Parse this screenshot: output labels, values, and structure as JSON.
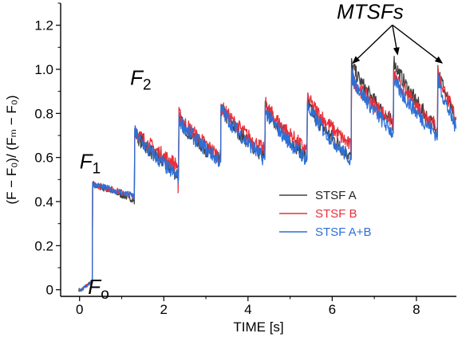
{
  "chart_data": {
    "type": "line",
    "xlabel": "TIME [s]",
    "ylabel": "(F − F₀)/ (Fₘ − F₀)",
    "xlim": [
      -0.45,
      8.95
    ],
    "ylim": [
      -0.03,
      1.3
    ],
    "x_ticks": [
      "0",
      "2",
      "4",
      "6",
      "8"
    ],
    "y_ticks": [
      "0",
      "0.2",
      "0.4",
      "0.6",
      "0.8",
      "1.0",
      "1.2"
    ],
    "legend_position": "center-right",
    "series": [
      {
        "name": "STSF A",
        "color": "#404040",
        "pulses": [
          0.3,
          1.3,
          2.35,
          3.35,
          4.4,
          5.4,
          6.45,
          7.45,
          8.5
        ],
        "peaks": [
          0.48,
          0.72,
          0.78,
          0.83,
          0.84,
          0.85,
          1.03,
          1.05,
          1.03
        ],
        "troughs": [
          0.39,
          0.52,
          0.58,
          0.6,
          0.6,
          0.6,
          0.75,
          0.72,
          0.75
        ]
      },
      {
        "name": "STSF B",
        "color": "#e8303a",
        "pulses": [
          0.3,
          1.3,
          2.35,
          3.35,
          4.4,
          5.4,
          6.45,
          7.45,
          8.5
        ],
        "peaks": [
          0.48,
          0.73,
          0.8,
          0.84,
          0.85,
          0.88,
          0.97,
          0.98,
          1.0
        ],
        "troughs": [
          0.41,
          0.56,
          0.6,
          0.63,
          0.63,
          0.65,
          0.76,
          0.74,
          0.78
        ]
      },
      {
        "name": "STSF A+B",
        "color": "#2d6fd6",
        "pulses": [
          0.3,
          1.3,
          2.35,
          3.35,
          4.4,
          5.4,
          6.45,
          7.45,
          8.5
        ],
        "peaks": [
          0.48,
          0.72,
          0.78,
          0.83,
          0.82,
          0.84,
          0.98,
          0.96,
          0.97
        ],
        "troughs": [
          0.41,
          0.51,
          0.58,
          0.59,
          0.59,
          0.59,
          0.71,
          0.7,
          0.73
        ]
      }
    ],
    "annotations": {
      "fo": {
        "text": "F",
        "sub": "o",
        "x": 0.2,
        "y": -0.02
      },
      "f1": {
        "text": "F",
        "sub": "1",
        "x": 0.0,
        "y": 0.55
      },
      "f2": {
        "text": "F",
        "sub": "2",
        "x": 1.2,
        "y": 0.93
      },
      "mtsfs": {
        "text": "MTSFs",
        "x": 6.9,
        "y": 1.23,
        "arrow_targets": [
          [
            6.5,
            1.03
          ],
          [
            7.55,
            1.07
          ],
          [
            8.6,
            1.03
          ]
        ]
      }
    }
  }
}
